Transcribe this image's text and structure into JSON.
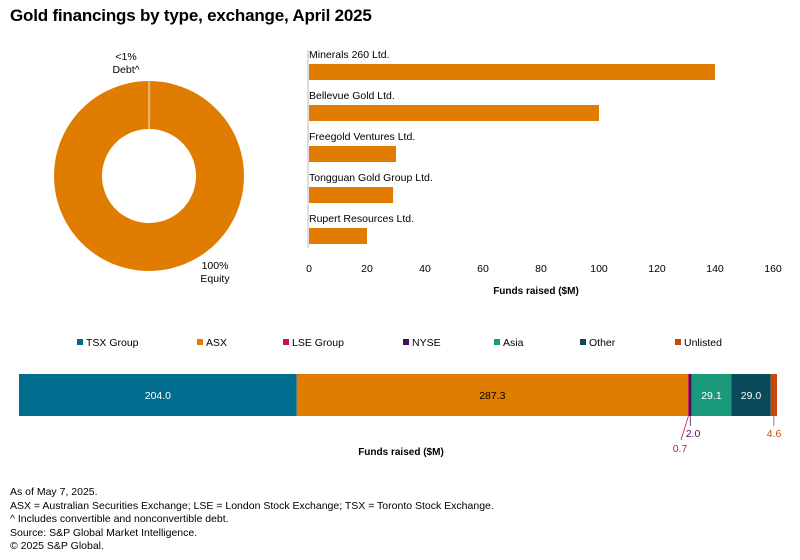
{
  "title": "Gold financings by type, exchange, April 2025",
  "colors": {
    "orange": "#e07c00",
    "tsx": "#006d8f",
    "lse": "#c8115a",
    "nyse": "#4b0f5a",
    "asia": "#1a9a7a",
    "other": "#0a4a5a",
    "unlisted": "#c84a0a",
    "axis": "#bbbbbb"
  },
  "chart_data": [
    {
      "type": "pie",
      "variant": "donut",
      "slices": [
        {
          "label": "Debt^",
          "value": 0.3,
          "display": "<1%"
        },
        {
          "label": "Equity",
          "value": 99.7,
          "display": "100%"
        }
      ]
    },
    {
      "type": "bar",
      "orientation": "horizontal",
      "categories": [
        "Minerals 260 Ltd.",
        "Bellevue Gold Ltd.",
        "Freegold Ventures Ltd.",
        "Tongguan Gold Group Ltd.",
        "Rupert Resources Ltd."
      ],
      "values": [
        140,
        100,
        30,
        29,
        20
      ],
      "xlabel": "Funds raised ($M)",
      "xlim": [
        0,
        160
      ],
      "ticks": [
        0,
        20,
        40,
        60,
        80,
        100,
        120,
        140,
        160
      ]
    },
    {
      "type": "bar",
      "variant": "stacked-horizontal",
      "xlabel": "Funds raised ($M)",
      "legend_position": "top",
      "series": [
        {
          "name": "TSX Group",
          "value": 204.0,
          "label": "204.0"
        },
        {
          "name": "ASX",
          "value": 287.3,
          "label": "287.3"
        },
        {
          "name": "LSE Group",
          "value": 0.7,
          "label": "0.7"
        },
        {
          "name": "NYSE",
          "value": 2.0,
          "label": "2.0"
        },
        {
          "name": "Asia",
          "value": 29.1,
          "label": "29.1"
        },
        {
          "name": "Other",
          "value": 29.0,
          "label": "29.0"
        },
        {
          "name": "Unlisted",
          "value": 4.6,
          "label": "4.6"
        }
      ]
    }
  ],
  "notes": [
    "As of May 7, 2025.",
    "ASX = Australian Securities Exchange; LSE = London Stock Exchange; TSX = Toronto Stock Exchange.",
    "^ Includes convertible and nonconvertible debt.",
    "Source: S&P Global Market Intelligence.",
    "© 2025 S&P Global."
  ]
}
